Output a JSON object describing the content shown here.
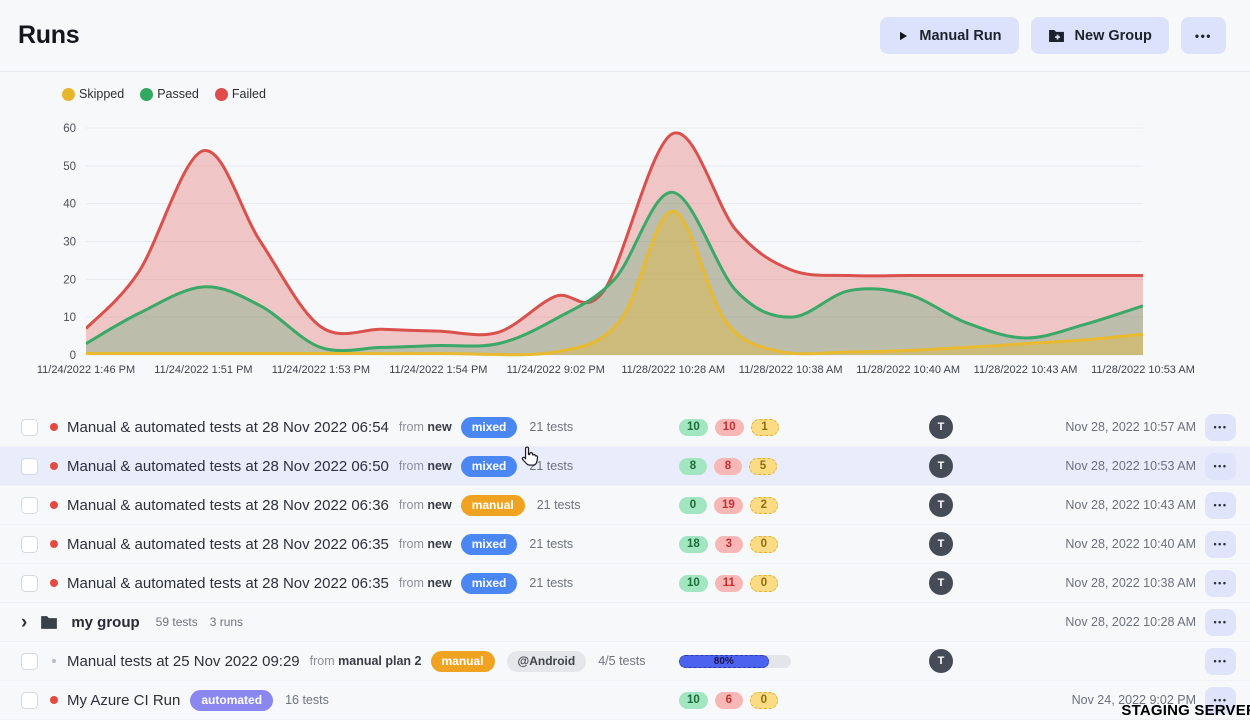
{
  "header": {
    "title": "Runs",
    "manual_run_label": "Manual Run",
    "new_group_label": "New Group",
    "more_label": "•••"
  },
  "legend": [
    {
      "label": "Skipped",
      "color": "#e8b62c"
    },
    {
      "label": "Passed",
      "color": "#33a861"
    },
    {
      "label": "Failed",
      "color": "#e04b4b"
    }
  ],
  "chart_data": {
    "type": "area",
    "title": "",
    "xlabel": "",
    "ylabel": "",
    "ylim": [
      0,
      60
    ],
    "yticks": [
      0,
      10,
      20,
      30,
      40,
      50,
      60
    ],
    "grid": "horizontal",
    "legend_position": "top-left",
    "x_labels": [
      "11/24/2022 1:46 PM",
      "11/24/2022 1:51 PM",
      "11/24/2022 1:53 PM",
      "11/24/2022 1:54 PM",
      "11/24/2022 9:02 PM",
      "11/28/2022 10:28 AM",
      "11/28/2022 10:38 AM",
      "11/28/2022 10:40 AM",
      "11/28/2022 10:43 AM",
      "11/28/2022 10:53 AM"
    ],
    "series": [
      {
        "name": "Failed",
        "color": "#d9504c",
        "fill": "rgba(221,82,77,0.30)",
        "points": [
          [
            0,
            7
          ],
          [
            0.05,
            22
          ],
          [
            0.111,
            54
          ],
          [
            0.165,
            30
          ],
          [
            0.222,
            7.5
          ],
          [
            0.28,
            6.8
          ],
          [
            0.333,
            6.3
          ],
          [
            0.39,
            6
          ],
          [
            0.444,
            15.5
          ],
          [
            0.49,
            17
          ],
          [
            0.555,
            58.5
          ],
          [
            0.615,
            33
          ],
          [
            0.667,
            22.5
          ],
          [
            0.722,
            21
          ],
          [
            0.778,
            21
          ],
          [
            0.833,
            21
          ],
          [
            0.889,
            21
          ],
          [
            0.944,
            21
          ],
          [
            1,
            21
          ]
        ]
      },
      {
        "name": "Passed",
        "color": "#3ba768",
        "fill": "rgba(59,167,104,0.28)",
        "points": [
          [
            0,
            3
          ],
          [
            0.05,
            11
          ],
          [
            0.111,
            18
          ],
          [
            0.165,
            13
          ],
          [
            0.222,
            2
          ],
          [
            0.28,
            2
          ],
          [
            0.333,
            2.5
          ],
          [
            0.39,
            3
          ],
          [
            0.444,
            9.5
          ],
          [
            0.5,
            20
          ],
          [
            0.555,
            43
          ],
          [
            0.615,
            17
          ],
          [
            0.667,
            10
          ],
          [
            0.722,
            17
          ],
          [
            0.778,
            16
          ],
          [
            0.833,
            8.5
          ],
          [
            0.889,
            4.5
          ],
          [
            0.944,
            8
          ],
          [
            1,
            13
          ]
        ]
      },
      {
        "name": "Skipped",
        "color": "#e9b92f",
        "fill": "rgba(233,185,47,0.38)",
        "points": [
          [
            0,
            0.4
          ],
          [
            0.111,
            0.4
          ],
          [
            0.222,
            0.4
          ],
          [
            0.333,
            0.4
          ],
          [
            0.444,
            0.8
          ],
          [
            0.505,
            9
          ],
          [
            0.555,
            38
          ],
          [
            0.605,
            9
          ],
          [
            0.655,
            1
          ],
          [
            0.722,
            0.8
          ],
          [
            0.778,
            1.2
          ],
          [
            0.833,
            2
          ],
          [
            0.889,
            3
          ],
          [
            0.944,
            4
          ],
          [
            1,
            5.5
          ]
        ]
      }
    ]
  },
  "runs": [
    {
      "kind": "run",
      "dot": "red",
      "title": "Manual & automated tests at 28 Nov 2022 06:54",
      "from_prefix": "from",
      "from_name": "new",
      "badge": {
        "label": "mixed",
        "style": "mixed"
      },
      "tests": "21 tests",
      "counts": [
        {
          "value": "10",
          "status": "passed"
        },
        {
          "value": "10",
          "status": "failed"
        },
        {
          "value": "1",
          "status": "skipped"
        }
      ],
      "avatar": "T",
      "date": "Nov 28, 2022 10:57 AM",
      "hovered": false
    },
    {
      "kind": "run",
      "dot": "red",
      "title": "Manual & automated tests at 28 Nov 2022 06:50",
      "from_prefix": "from",
      "from_name": "new",
      "badge": {
        "label": "mixed",
        "style": "mixed"
      },
      "tests": "21 tests",
      "counts": [
        {
          "value": "8",
          "status": "passed"
        },
        {
          "value": "8",
          "status": "failed"
        },
        {
          "value": "5",
          "status": "skipped"
        }
      ],
      "avatar": "T",
      "date": "Nov 28, 2022 10:53 AM",
      "hovered": true
    },
    {
      "kind": "run",
      "dot": "red",
      "title": "Manual & automated tests at 28 Nov 2022 06:36",
      "from_prefix": "from",
      "from_name": "new",
      "badge": {
        "label": "manual",
        "style": "manual"
      },
      "tests": "21 tests",
      "counts": [
        {
          "value": "0",
          "status": "passed"
        },
        {
          "value": "19",
          "status": "failed"
        },
        {
          "value": "2",
          "status": "skipped"
        }
      ],
      "avatar": "T",
      "date": "Nov 28, 2022 10:43 AM",
      "hovered": false
    },
    {
      "kind": "run",
      "dot": "red",
      "title": "Manual & automated tests at 28 Nov 2022 06:35",
      "from_prefix": "from",
      "from_name": "new",
      "badge": {
        "label": "mixed",
        "style": "mixed"
      },
      "tests": "21 tests",
      "counts": [
        {
          "value": "18",
          "status": "passed"
        },
        {
          "value": "3",
          "status": "failed"
        },
        {
          "value": "0",
          "status": "skipped"
        }
      ],
      "avatar": "T",
      "date": "Nov 28, 2022 10:40 AM",
      "hovered": false
    },
    {
      "kind": "run",
      "dot": "red",
      "title": "Manual & automated tests at 28 Nov 2022 06:35",
      "from_prefix": "from",
      "from_name": "new",
      "badge": {
        "label": "mixed",
        "style": "mixed"
      },
      "tests": "21 tests",
      "counts": [
        {
          "value": "10",
          "status": "failed2passed"
        },
        {
          "value": "11",
          "status": "failed"
        },
        {
          "value": "0",
          "status": "skipped"
        }
      ],
      "avatar": "T",
      "date": "Nov 28, 2022 10:38 AM",
      "hovered": false
    },
    {
      "kind": "group",
      "name": "my group",
      "tests_meta": "59 tests",
      "runs_meta": "3 runs",
      "date": "Nov 28, 2022 10:28 AM"
    },
    {
      "kind": "run",
      "dot": "small",
      "title": "Manual tests at 25 Nov 2022 09:29",
      "from_prefix": "from",
      "from_name": "manual plan 2",
      "badge": {
        "label": "manual",
        "style": "manual"
      },
      "tag": "@Android",
      "tests": "4/5 tests",
      "progress": {
        "percent": 80,
        "label": "80%"
      },
      "avatar": "T",
      "date": "",
      "hovered": false
    },
    {
      "kind": "run",
      "dot": "red",
      "title": "My Azure CI Run",
      "badge": {
        "label": "automated",
        "style": "automated"
      },
      "tests": "16 tests",
      "counts": [
        {
          "value": "10",
          "status": "passed"
        },
        {
          "value": "6",
          "status": "failed"
        },
        {
          "value": "0",
          "status": "skipped"
        }
      ],
      "avatar": "",
      "date": "Nov 24, 2022 9:02 PM",
      "hovered": false
    }
  ],
  "watermark": "STAGING SERVER"
}
